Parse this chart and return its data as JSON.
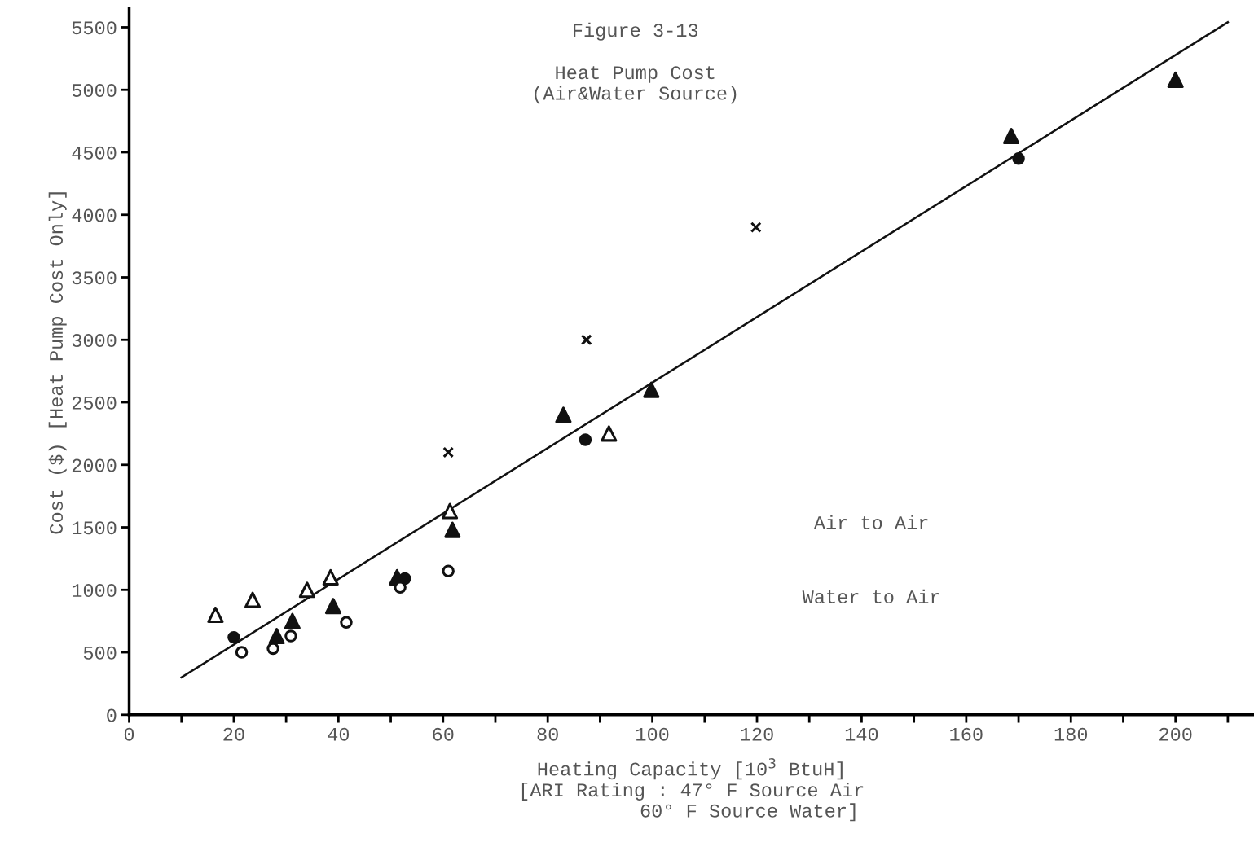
{
  "chart_data": {
    "type": "scatter",
    "title": "Figure 3-13",
    "subtitle": "Heat Pump Cost\n(Air&Water Source)",
    "xlabel": "Heating Capacity [10$^{3}$ BtuH]\n[ARI Rating : 47° F Source Air\n          60° F Source Water]",
    "ylabel": "Cost ($) [Heat Pump Cost Only]",
    "annotations": [
      "Air to Air",
      "Water to Air"
    ],
    "xlim": [
      0,
      215
    ],
    "ylim": [
      0,
      5650
    ],
    "xticks": [
      0,
      {
        "value": 10,
        "label": null
      },
      20,
      {
        "value": 30,
        "label": null
      },
      40,
      {
        "value": 50,
        "label": null
      },
      60,
      {
        "value": 70,
        "label": null
      },
      80,
      {
        "value": 90,
        "label": null
      },
      100,
      {
        "value": 110,
        "label": null
      },
      120,
      {
        "value": 130,
        "label": null
      },
      140,
      {
        "value": 150,
        "label": null
      },
      160,
      {
        "value": 170,
        "label": null
      },
      180,
      {
        "value": 190,
        "label": null
      },
      200,
      {
        "value": 210,
        "label": null
      }
    ],
    "yticks": [
      0,
      500,
      1000,
      1500,
      2000,
      2500,
      3000,
      3500,
      4000,
      4500,
      5000,
      5500
    ],
    "grid": false,
    "legend": false,
    "series": [
      {
        "marker": "cross",
        "color": "#111111",
        "x": [
          61,
          87.4,
          119.8
        ],
        "values": [
          2100,
          3000,
          3900
        ]
      },
      {
        "marker": "circle",
        "color": "#111111",
        "x": [
          20,
          52.7,
          87.2,
          170
        ],
        "values": [
          620,
          1090,
          2200,
          4450
        ]
      },
      {
        "marker": "triangle",
        "color": "#ffffff",
        "x": [
          16.5,
          23.6,
          34,
          38.5,
          61.3,
          91.7
        ],
        "values": [
          800,
          920,
          1000,
          1100,
          1630,
          2250
        ]
      },
      {
        "marker": "triangle",
        "color": "#111111",
        "x": [
          28.2,
          31.2,
          39,
          51.2,
          61.8,
          83,
          99.8,
          168.6,
          200
        ],
        "values": [
          630,
          750,
          870,
          1100,
          1480,
          2400,
          2600,
          4630,
          5080
        ]
      },
      {
        "marker": "circle",
        "color": "#ffffff",
        "x": [
          21.5,
          27.5,
          30.9,
          41.5,
          51.8,
          61
        ],
        "values": [
          500,
          530,
          630,
          740,
          1020,
          1150
        ]
      },
      {
        "type": "line",
        "color": "#111111",
        "line_style": "solid",
        "marker": "none",
        "x": [
          10,
          210
        ],
        "values": [
          300,
          5540
        ]
      }
    ]
  }
}
